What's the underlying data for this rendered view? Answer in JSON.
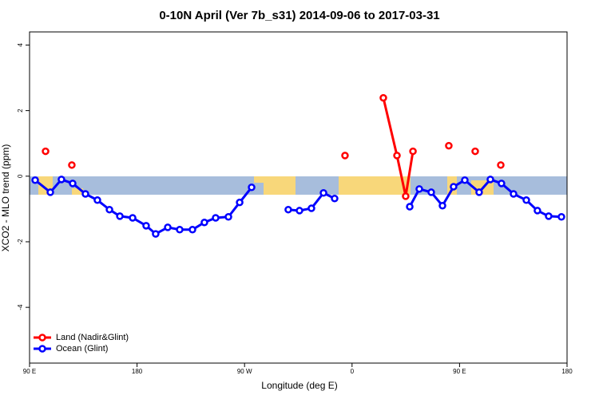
{
  "chart_data": {
    "type": "line",
    "title": "0-10N April (Ver 7b_s31)   2014-09-06 to 2017-03-31",
    "x_label": "Longitude (deg E)",
    "y_label": "XCO2 - MLO trend (ppm)",
    "xlim": [
      90,
      540
    ],
    "xticks": [
      {
        "value": 90,
        "label": "90 E"
      },
      {
        "value": 180,
        "label": "180"
      },
      {
        "value": 270,
        "label": "90 W"
      },
      {
        "value": 360,
        "label": "0"
      },
      {
        "value": 450,
        "label": "90 E"
      },
      {
        "value": 540,
        "label": "180"
      }
    ],
    "ylim": [
      -5.7,
      4.4
    ],
    "yticks": [
      -4,
      -2,
      0,
      2,
      4
    ],
    "legend": "bottom-left",
    "series": [
      {
        "name": "Land (Nadir&Glint)",
        "color": "#ff0000",
        "x": [
          103.4,
          null,
          125.4,
          null,
          354.1,
          null,
          386.2,
          397.6,
          404.9,
          411.0,
          null,
          441.0,
          null,
          463.1,
          null,
          484.5
        ],
        "values": [
          0.76,
          null,
          0.34,
          null,
          0.63,
          null,
          2.39,
          0.63,
          -0.61,
          0.76,
          null,
          0.93,
          null,
          0.76,
          null,
          0.34
        ]
      },
      {
        "name": "Ocean (Glint)",
        "color": "#0000ff",
        "x": [
          94.7,
          107.4,
          116.7,
          126.1,
          136.8,
          146.8,
          156.9,
          165.6,
          176.3,
          187.6,
          195.6,
          205.7,
          215.7,
          226.4,
          236.4,
          245.8,
          256.5,
          265.9,
          275.9,
          null,
          306.6,
          316.0,
          326.0,
          336.1,
          345.4,
          null,
          408.3,
          416.3,
          426.3,
          435.7,
          445.0,
          454.4,
          466.4,
          475.8,
          485.1,
          495.2,
          505.9,
          515.2,
          524.6,
          535.3
        ],
        "values": [
          -0.12,
          -0.49,
          -0.1,
          -0.22,
          -0.54,
          -0.73,
          -1.02,
          -1.22,
          -1.27,
          -1.51,
          -1.76,
          -1.56,
          -1.63,
          -1.63,
          -1.41,
          -1.27,
          -1.24,
          -0.8,
          -0.34,
          null,
          -1.02,
          -1.05,
          -0.98,
          -0.51,
          -0.68,
          null,
          -0.93,
          -0.39,
          -0.49,
          -0.9,
          -0.32,
          -0.12,
          -0.49,
          -0.1,
          -0.22,
          -0.54,
          -0.73,
          -1.05,
          -1.22,
          -1.24
        ]
      }
    ]
  }
}
